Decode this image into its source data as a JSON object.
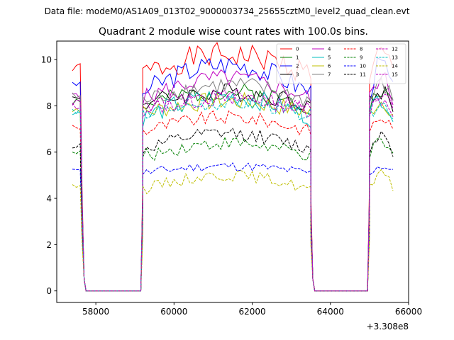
{
  "suptitle": "Data file: modeM0/AS1A09_013T02_9000003734_25655cztM0_level2_quad_clean.evt",
  "chart_data": {
    "type": "line",
    "title": "Quadrant 2 module wise count rates with 100.0s bins.",
    "xlabel": "",
    "ylabel": "",
    "x_offset_label": "+3.308e8",
    "xlim": [
      57000,
      66000
    ],
    "ylim": [
      -0.5,
      10.8
    ],
    "xticks": [
      58000,
      60000,
      62000,
      64000,
      66000
    ],
    "xtick_labels": [
      "58000",
      "60000",
      "62000",
      "64000",
      "66000"
    ],
    "yticks": [
      0,
      2,
      4,
      6,
      8,
      10
    ],
    "ytick_labels": [
      "0",
      "2",
      "4",
      "6",
      "8",
      "10"
    ],
    "grid": false,
    "legend_position": "top-right",
    "segments": [
      {
        "start": 57400,
        "end": 57600
      },
      {
        "start": 59200,
        "end": 63450
      },
      {
        "start": 65000,
        "end": 65550
      }
    ],
    "series": [
      {
        "name": "0",
        "color": "#ff0000",
        "dashed": false,
        "level": 9.4,
        "trend": 0.8,
        "spread": 0.55,
        "seed": 1
      },
      {
        "name": "1",
        "color": "#008000",
        "dashed": false,
        "level": 8.0,
        "trend": 0.6,
        "spread": 0.4,
        "seed": 2
      },
      {
        "name": "2",
        "color": "#0000ff",
        "dashed": false,
        "level": 8.6,
        "trend": 1.2,
        "spread": 0.5,
        "seed": 3
      },
      {
        "name": "3",
        "color": "#000000",
        "dashed": false,
        "level": 8.1,
        "trend": 0.5,
        "spread": 0.4,
        "seed": 4
      },
      {
        "name": "4",
        "color": "#bf00bf",
        "dashed": false,
        "level": 8.3,
        "trend": 0.9,
        "spread": 0.4,
        "seed": 5
      },
      {
        "name": "5",
        "color": "#00bfbf",
        "dashed": false,
        "level": 7.5,
        "trend": 0.9,
        "spread": 0.45,
        "seed": 6
      },
      {
        "name": "6",
        "color": "#bfbf00",
        "dashed": false,
        "level": 7.7,
        "trend": 0.5,
        "spread": 0.4,
        "seed": 7
      },
      {
        "name": "7",
        "color": "#808080",
        "dashed": false,
        "level": 8.2,
        "trend": 0.7,
        "spread": 0.4,
        "seed": 8
      },
      {
        "name": "8",
        "color": "#ff0000",
        "dashed": true,
        "level": 6.9,
        "trend": 0.6,
        "spread": 0.3,
        "seed": 9
      },
      {
        "name": "9",
        "color": "#008000",
        "dashed": true,
        "level": 5.8,
        "trend": 0.6,
        "spread": 0.3,
        "seed": 10
      },
      {
        "name": "10",
        "color": "#0000ff",
        "dashed": true,
        "level": 5.1,
        "trend": 0.3,
        "spread": 0.2,
        "seed": 11
      },
      {
        "name": "11",
        "color": "#000000",
        "dashed": true,
        "level": 6.1,
        "trend": 0.7,
        "spread": 0.3,
        "seed": 12
      },
      {
        "name": "12",
        "color": "#bf00bf",
        "dashed": true,
        "level": 7.8,
        "trend": 0.5,
        "spread": 0.35,
        "seed": 13
      },
      {
        "name": "13",
        "color": "#00bfbf",
        "dashed": true,
        "level": 7.6,
        "trend": 0.5,
        "spread": 0.3,
        "seed": 14
      },
      {
        "name": "14",
        "color": "#bfbf00",
        "dashed": true,
        "level": 4.4,
        "trend": 0.6,
        "spread": 0.25,
        "seed": 15
      },
      {
        "name": "15",
        "color": "#bf00bf",
        "dashed": true,
        "level": 7.9,
        "trend": 0.5,
        "spread": 0.35,
        "seed": 16
      }
    ]
  }
}
